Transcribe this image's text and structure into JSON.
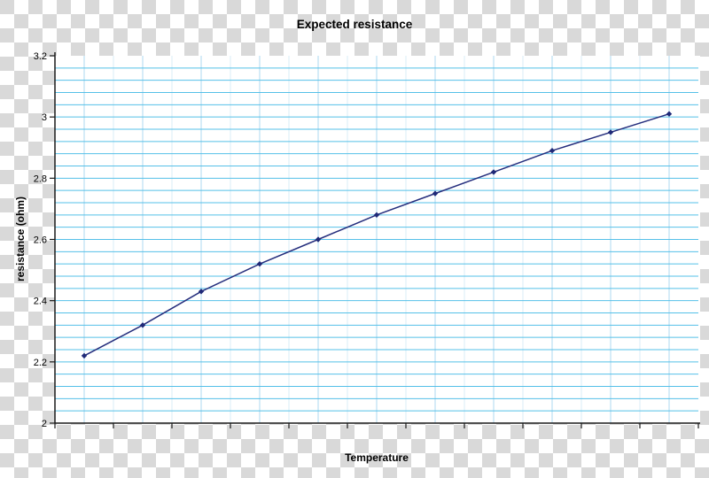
{
  "title": "Expected resistance",
  "axes": {
    "y_label": "resistance (ohm)",
    "x_label": "Temperature",
    "y_ticks": [
      {
        "label": "3.2",
        "value": 3.2
      },
      {
        "label": "3",
        "value": 3.0
      },
      {
        "label": "2.8",
        "value": 2.8
      },
      {
        "label": "2.6",
        "value": 2.6
      },
      {
        "label": "2.4",
        "value": 2.4
      },
      {
        "label": "2.2",
        "value": 2.2
      },
      {
        "label": "2",
        "value": 2.0
      }
    ],
    "x_tick_labels": []
  },
  "colors": {
    "series_line": "#252e7d",
    "marker": "#1f2a78",
    "h_gridline": "#55c0e8",
    "v_gridline_strong": "#aed9f2",
    "v_gridline_faint": "#d9ecf7",
    "axis_line": "#1a1a1a",
    "plot_background": "#ffffff",
    "checker_gray": "#d9d9d9"
  },
  "chart_data": {
    "type": "line",
    "title": "Expected resistance",
    "xlabel": "Temperature",
    "ylabel": "resistance (ohm)",
    "x": [
      1,
      2,
      3,
      4,
      5,
      6,
      7,
      8,
      9,
      10,
      11
    ],
    "x_tick_labels_visible": false,
    "values": [
      2.22,
      2.32,
      2.43,
      2.52,
      2.6,
      2.68,
      2.75,
      2.82,
      2.89,
      2.95,
      3.01
    ],
    "series_name": "Expected resistance",
    "ylim": [
      2.0,
      3.2
    ],
    "y_major_step": 0.2,
    "y_minor_step": 0.04,
    "x_tick_count": 12,
    "grid": "on",
    "legend": "none",
    "marker": "diamond",
    "background": "transparent-checkerboard"
  }
}
